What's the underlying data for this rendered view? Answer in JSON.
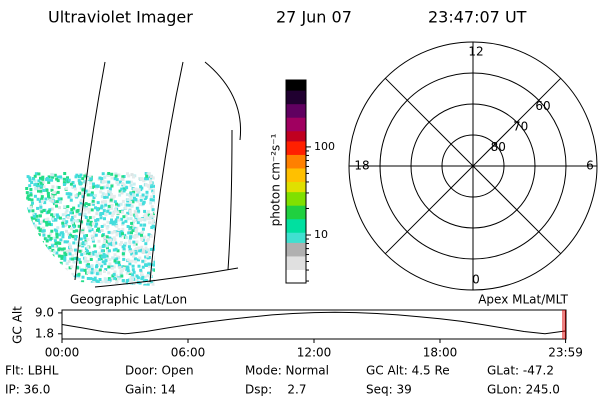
{
  "header": {
    "title": "Ultraviolet Imager",
    "date": "27 Jun 07",
    "time": "23:47:07 UT"
  },
  "image": {
    "label": "Geographic Lat/Lon"
  },
  "colorbar": {
    "label": "photon cm⁻²s⁻¹",
    "scale": "log",
    "lim": [
      2.85,
      575
    ],
    "ticks": [
      10,
      100
    ]
  },
  "polar": {
    "label": "Apex MLat/MLT",
    "lim": [
      50,
      90
    ],
    "rings": [
      60,
      70,
      80
    ],
    "mlt": [
      12,
      18,
      6,
      0
    ]
  },
  "altitude": {
    "label": "GC Alt",
    "ylim": [
      0,
      10
    ],
    "yticks": [
      {
        "value": 9,
        "label": "9.0"
      },
      1.8
    ],
    "xlim": [
      0,
      24
    ],
    "xticks": [
      {
        "value": 0,
        "label": "00:00"
      },
      {
        "value": 6,
        "label": "06:00"
      },
      {
        "value": 12,
        "label": "12:00"
      },
      {
        "value": 18,
        "label": "18:00"
      },
      {
        "value": 23.98,
        "label": "23:59"
      }
    ],
    "x": [
      0,
      1,
      2,
      3,
      4,
      5,
      6,
      7,
      8,
      9,
      10,
      11,
      12,
      13,
      14,
      15,
      16,
      17,
      18,
      19,
      20,
      21,
      22,
      23,
      24
    ],
    "values": [
      5.0,
      3.8,
      2.5,
      1.8,
      2.6,
      3.8,
      4.9,
      5.9,
      6.8,
      7.6,
      8.3,
      8.8,
      9.1,
      9.2,
      9.1,
      8.8,
      8.3,
      7.7,
      7.0,
      6.1,
      5.0,
      3.8,
      2.6,
      1.8,
      2.8
    ]
  },
  "info": [
    [
      "Flt: LBHL",
      "Door: Open",
      "Mode: Normal",
      "GC Alt: 4.5 Re",
      "GLat: -47.2"
    ],
    [
      "IP: 36.0",
      "Gain: 14",
      "Dsp:    2.7",
      "Seq: 39",
      "GLon: 245.0"
    ]
  ]
}
